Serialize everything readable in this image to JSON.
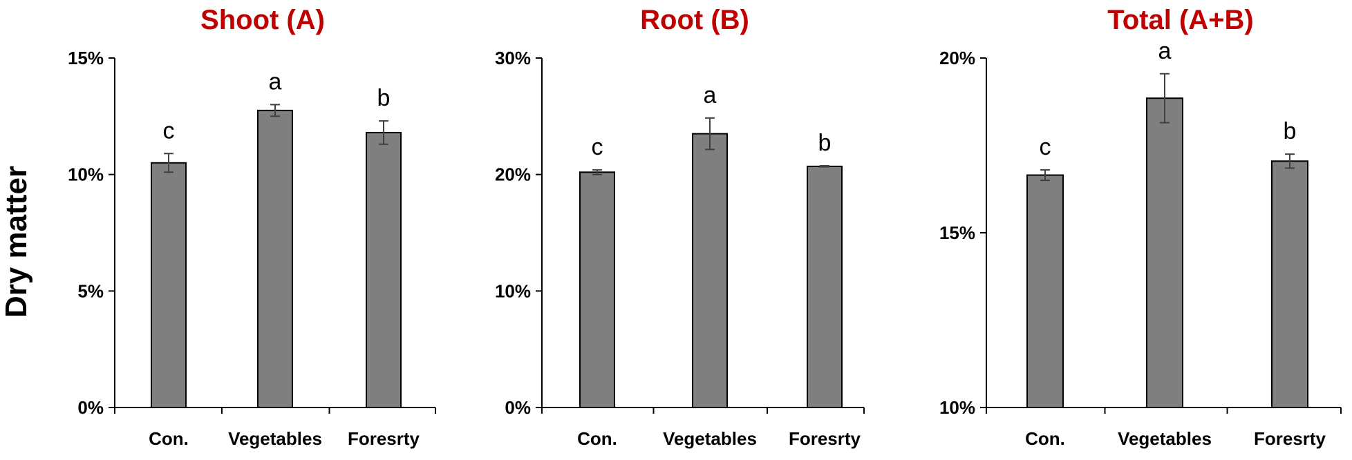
{
  "colors": {
    "title": "#c00000",
    "bar": "#7f7f7f"
  },
  "ylabel": "Dry matter",
  "chart_data": [
    {
      "type": "bar",
      "title": "Shoot (A)",
      "categories": [
        "Con.",
        "Vegetables",
        "Foresrty"
      ],
      "values": [
        10.5,
        12.75,
        11.8
      ],
      "errors": [
        0.4,
        0.25,
        0.5
      ],
      "labels": [
        "c",
        "a",
        "b"
      ],
      "ylim": [
        0,
        15
      ],
      "yticks": [
        0,
        5,
        10,
        15
      ],
      "ytick_labels": [
        "0%",
        "5%",
        "10%",
        "15%"
      ]
    },
    {
      "type": "bar",
      "title": "Root (B)",
      "categories": [
        "Con.",
        "Vegetables",
        "Foresrty"
      ],
      "values": [
        20.2,
        23.5,
        20.7
      ],
      "errors": [
        0.2,
        1.35,
        0.05
      ],
      "labels": [
        "c",
        "a",
        "b"
      ],
      "ylim": [
        0,
        30
      ],
      "yticks": [
        0,
        10,
        20,
        30
      ],
      "ytick_labels": [
        "0%",
        "10%",
        "20%",
        "30%"
      ]
    },
    {
      "type": "bar",
      "title": "Total (A+B)",
      "categories": [
        "Con.",
        "Vegetables",
        "Foresrty"
      ],
      "values": [
        16.65,
        18.85,
        17.05
      ],
      "errors": [
        0.15,
        0.7,
        0.2
      ],
      "labels": [
        "c",
        "a",
        "b"
      ],
      "ylim": [
        10,
        20
      ],
      "yticks": [
        10,
        15,
        20
      ],
      "ytick_labels": [
        "10%",
        "15%",
        "20%"
      ]
    }
  ]
}
